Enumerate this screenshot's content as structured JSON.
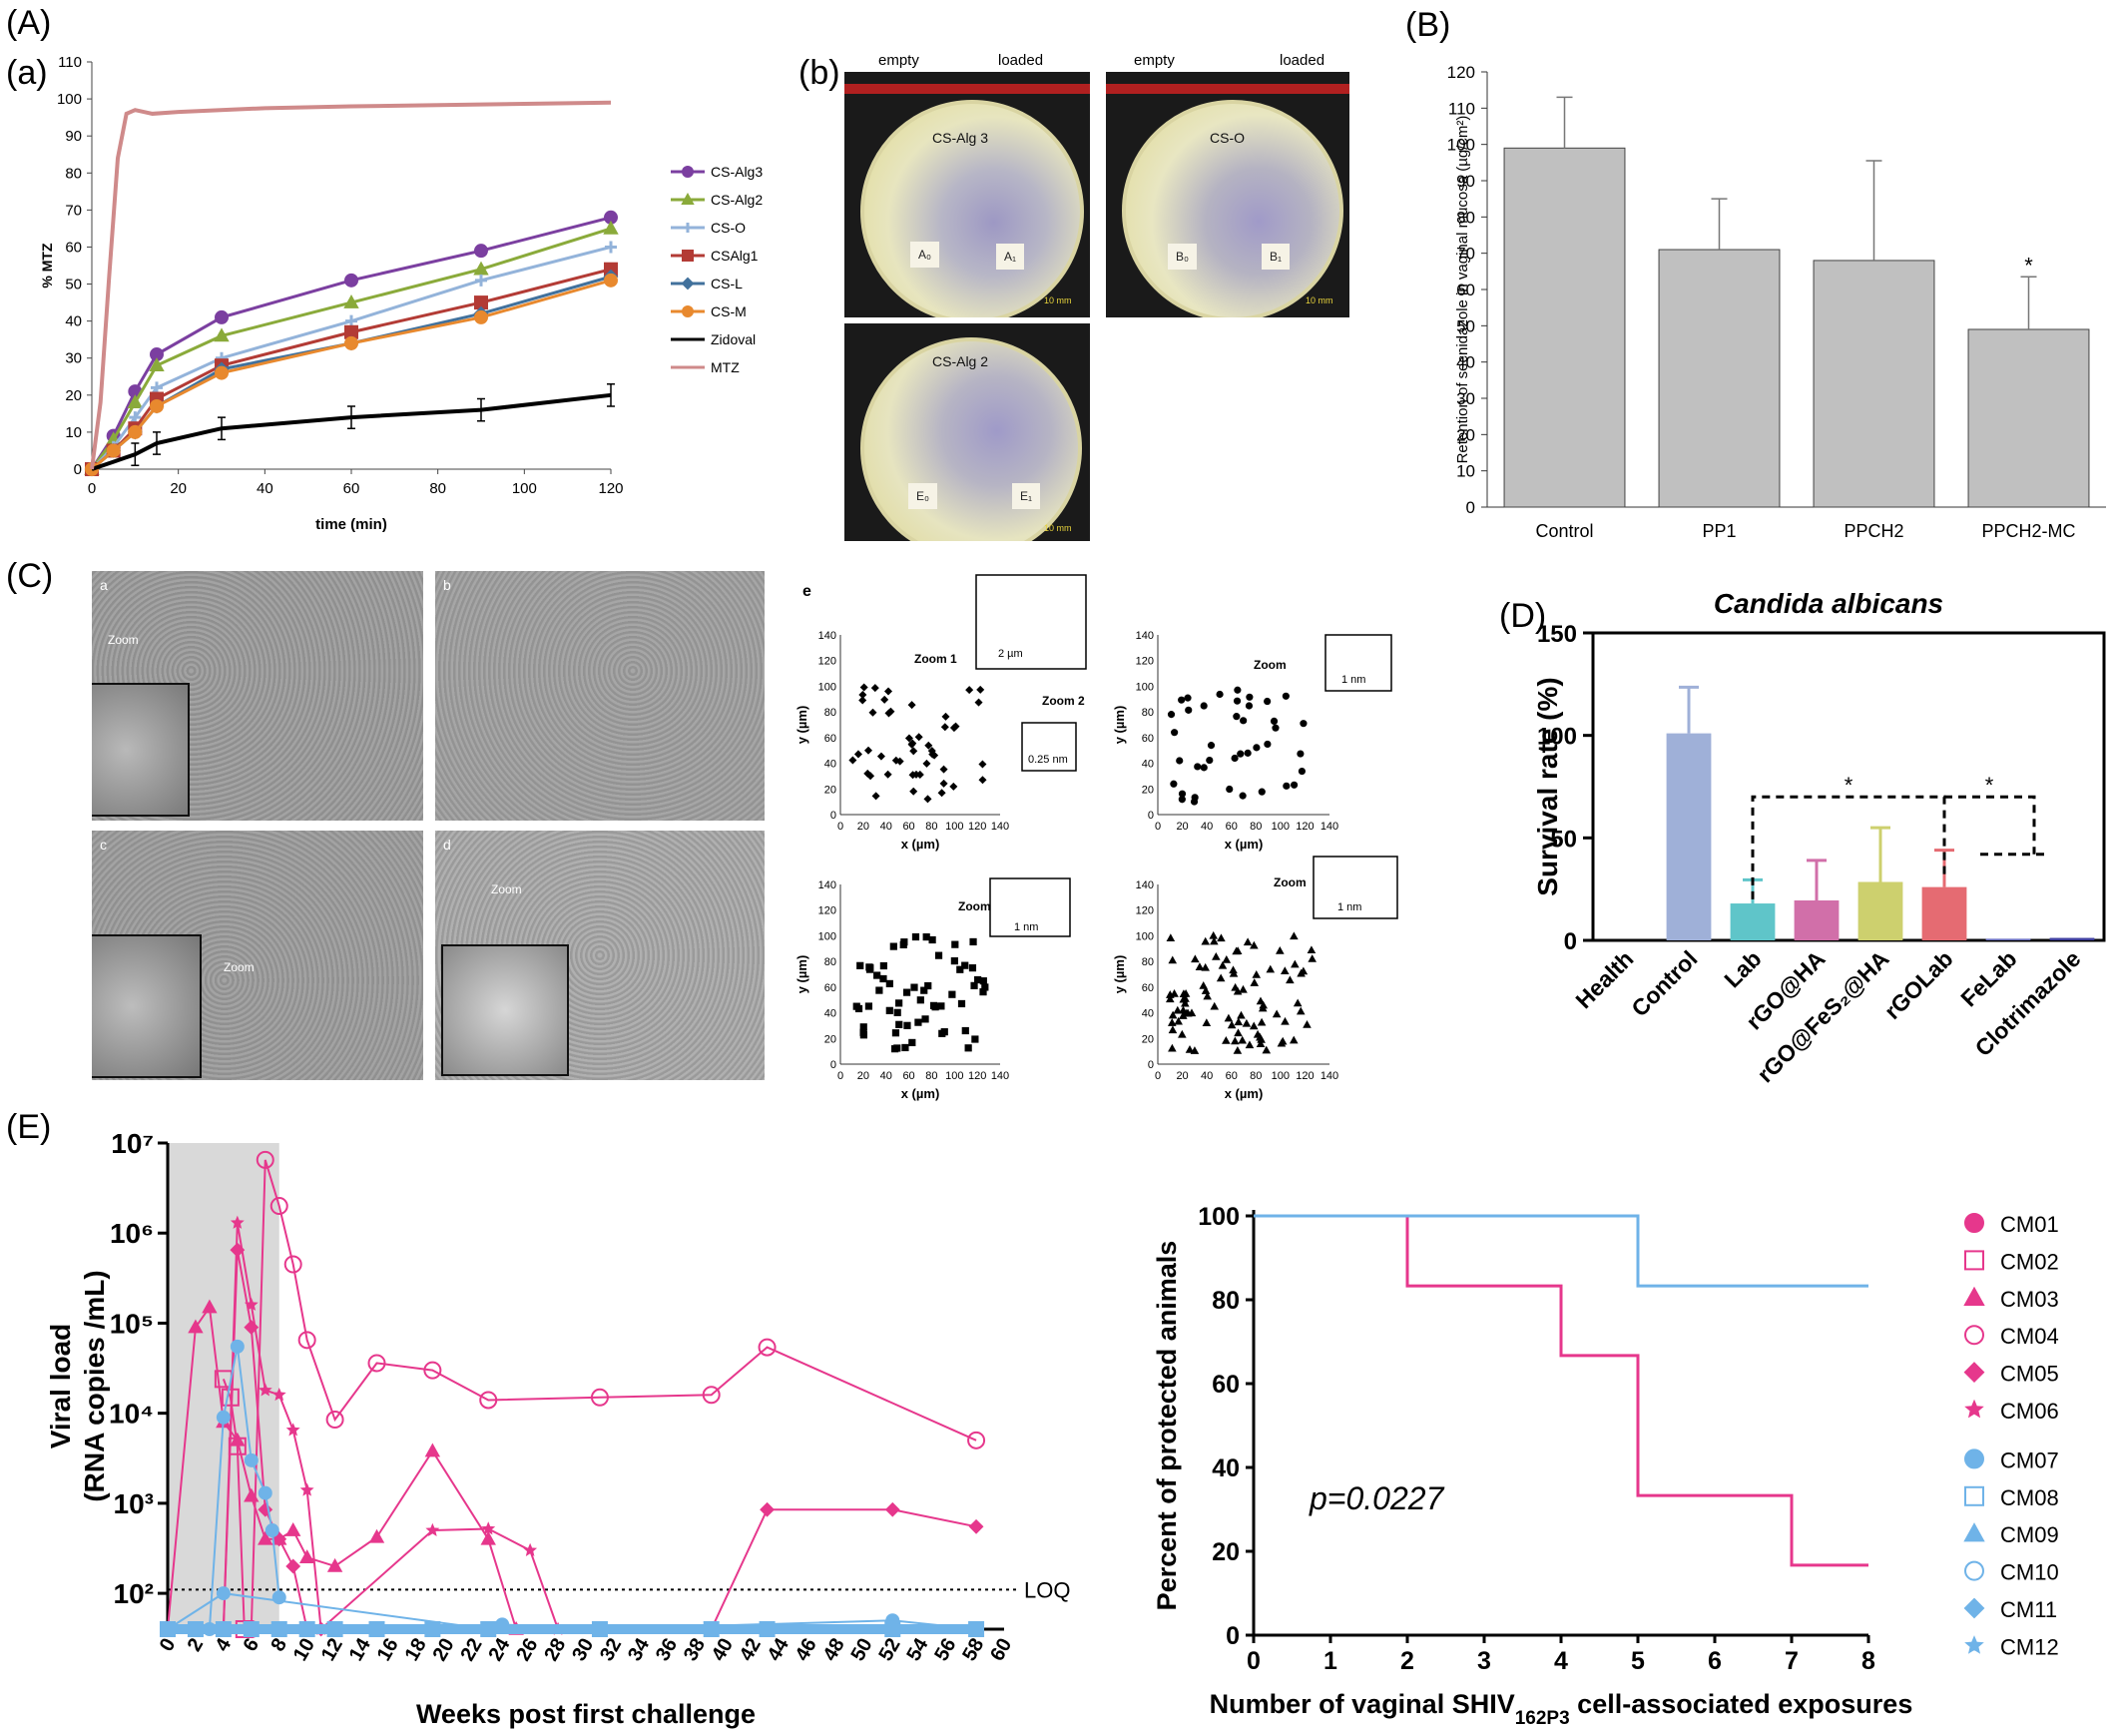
{
  "panels": {
    "A": "(A)",
    "a": "(a)",
    "b": "(b)",
    "B": "(B)",
    "C": "(C)",
    "D": "(D)",
    "E": "(E)"
  },
  "colors": {
    "purple": "#7b3fa0",
    "green": "#8aaa3a",
    "lightblue": "#93b3da",
    "darkred": "#b33b35",
    "steel": "#41719c",
    "orange": "#e8892e",
    "black": "#000000",
    "pink": "#cf8a8a",
    "magenta": "#e6378c",
    "sky": "#6fb3e8",
    "bargray": "#c0c0c0"
  },
  "chart_data": [
    {
      "id": "A_release",
      "type": "line",
      "xlabel": "time (min)",
      "ylabel": "% MTZ",
      "xlim": [
        0,
        120
      ],
      "ylim": [
        0,
        110
      ],
      "xticks": [
        0,
        20,
        40,
        60,
        80,
        100,
        120
      ],
      "yticks": [
        0,
        10,
        20,
        30,
        40,
        50,
        60,
        70,
        80,
        90,
        100,
        110
      ],
      "series": [
        {
          "name": "CS-Alg3",
          "color": "#7b3fa0",
          "marker": "circle",
          "x": [
            0,
            5,
            10,
            15,
            30,
            60,
            90,
            120
          ],
          "y": [
            0,
            9,
            21,
            31,
            41,
            51,
            59,
            68
          ]
        },
        {
          "name": "CS-Alg2",
          "color": "#8aaa3a",
          "marker": "triangle",
          "x": [
            0,
            5,
            10,
            15,
            30,
            60,
            90,
            120
          ],
          "y": [
            0,
            8,
            18,
            28,
            36,
            45,
            54,
            65
          ]
        },
        {
          "name": "CS-O",
          "color": "#93b3da",
          "marker": "plus",
          "x": [
            0,
            5,
            10,
            15,
            30,
            60,
            90,
            120
          ],
          "y": [
            0,
            6,
            14,
            22,
            30,
            40,
            51,
            60
          ]
        },
        {
          "name": "CSAlg1",
          "color": "#b33b35",
          "marker": "square",
          "x": [
            0,
            5,
            10,
            15,
            30,
            60,
            90,
            120
          ],
          "y": [
            0,
            5,
            11,
            19,
            28,
            37,
            45,
            54
          ]
        },
        {
          "name": "CS-L",
          "color": "#41719c",
          "marker": "diamond",
          "x": [
            0,
            5,
            10,
            15,
            30,
            60,
            90,
            120
          ],
          "y": [
            0,
            5,
            10,
            17,
            27,
            34,
            42,
            52
          ]
        },
        {
          "name": "CS-M",
          "color": "#e8892e",
          "marker": "circle",
          "x": [
            0,
            5,
            10,
            15,
            30,
            60,
            90,
            120
          ],
          "y": [
            0,
            5,
            10,
            17,
            26,
            34,
            41,
            51
          ]
        },
        {
          "name": "Zidoval",
          "color": "#000000",
          "marker": "none",
          "x": [
            0,
            5,
            10,
            15,
            30,
            60,
            90,
            120
          ],
          "y": [
            0,
            2,
            4,
            7,
            11,
            14,
            16,
            20
          ]
        },
        {
          "name": "MTZ",
          "color": "#cf8a8a",
          "marker": "none",
          "x": [
            0,
            2,
            4,
            6,
            8,
            10,
            12,
            14,
            20,
            40,
            60,
            90,
            120
          ],
          "y": [
            0,
            18,
            52,
            84,
            96,
            97,
            96.5,
            96,
            96.5,
            97.5,
            98,
            98.5,
            99
          ]
        }
      ]
    },
    {
      "id": "B_retention",
      "type": "bar",
      "ylabel": "Retention of secnidazole in vaginal mucosa (µg/cm²)",
      "categories": [
        "Control",
        "PP1",
        "PPCH2",
        "PPCH2-MC"
      ],
      "values": [
        99,
        71,
        68,
        49
      ],
      "errors": [
        14,
        14,
        27.5,
        14.5
      ],
      "ylim": [
        0,
        120
      ],
      "yticks": [
        0,
        10,
        20,
        30,
        40,
        50,
        60,
        70,
        80,
        90,
        100,
        110,
        120
      ],
      "annotations": [
        "",
        "",
        "",
        "*"
      ]
    },
    {
      "id": "D_survival",
      "type": "bar",
      "title": "Candida albicans",
      "ylabel": "Survival rate (%)",
      "categories": [
        "Health",
        "Control",
        "Lab",
        "rGO@HA",
        "rGO@FeS₂@HA",
        "rGOLab",
        "FeLab",
        "Clotrimazole"
      ],
      "values": [
        0,
        101,
        18,
        19.5,
        28.5,
        26,
        0.8,
        1.2
      ],
      "errors": [
        0,
        22.5,
        11.5,
        19.5,
        26.5,
        18,
        0,
        0
      ],
      "colors": [
        "#ffffff",
        "#9fb0d8",
        "#5fc5c9",
        "#d16fa9",
        "#cdd06e",
        "#e56b72",
        "#6a6fc0",
        "#3f3f9f"
      ],
      "ylim": [
        0,
        150
      ],
      "yticks": [
        0,
        50,
        100,
        150
      ],
      "annotations": [
        "*",
        "*"
      ]
    },
    {
      "id": "E_viral",
      "type": "line",
      "xlabel": "Weeks post first challenge",
      "ylabel": "Viral load (RNA copies /mL)",
      "xlim": [
        0,
        60
      ],
      "ylog": true,
      "ylim": [
        40,
        10000000
      ],
      "xticks": [
        0,
        2,
        4,
        6,
        8,
        10,
        12,
        14,
        16,
        18,
        20,
        22,
        24,
        26,
        28,
        30,
        32,
        34,
        36,
        38,
        40,
        42,
        44,
        46,
        48,
        50,
        52,
        54,
        56,
        58,
        60
      ],
      "yticks": [
        "10²",
        "10³",
        "10⁴",
        "10⁵",
        "10⁶",
        "10⁷"
      ],
      "reference_line": {
        "label": "LOQ",
        "y": 110
      },
      "series": [
        {
          "name": "CM03",
          "color": "#e6378c",
          "x": [
            0,
            2,
            3,
            4,
            5,
            6,
            7,
            8,
            9,
            10,
            12,
            15,
            19,
            23,
            25
          ],
          "y": [
            40,
            90000,
            150000,
            8000,
            5000,
            1200,
            400,
            400,
            500,
            250,
            200,
            420,
            3800,
            400,
            40
          ]
        },
        {
          "name": "CM04",
          "color": "#e6378c",
          "x": [
            6,
            7,
            8,
            9,
            10,
            12,
            15,
            19,
            23,
            31,
            39,
            43,
            58
          ],
          "y": [
            40,
            6500000,
            2000000,
            450000,
            65000,
            8500,
            36000,
            30000,
            14000,
            15000,
            16000,
            54000,
            5000
          ]
        },
        {
          "name": "CM05",
          "color": "#e6378c",
          "x": [
            4,
            5,
            6,
            7,
            8,
            9,
            10,
            11,
            39,
            43,
            52,
            58
          ],
          "y": [
            40,
            650000,
            90000,
            850,
            400,
            200,
            40,
            40,
            40,
            850,
            850,
            550
          ]
        },
        {
          "name": "CM06",
          "color": "#e6378c",
          "x": [
            4,
            5,
            6,
            7,
            8,
            9,
            10,
            11,
            19,
            23,
            26,
            28
          ],
          "y": [
            40,
            1300000,
            160000,
            18000,
            16000,
            6500,
            1400,
            40,
            500,
            520,
            300,
            40
          ]
        },
        {
          "name": "CM02",
          "color": "#e6378c",
          "x": [
            4,
            4.5,
            5,
            5.5
          ],
          "y": [
            24000,
            15000,
            4300,
            40
          ]
        },
        {
          "name": "CM09",
          "color": "#6fb3e8",
          "x": [
            3,
            4,
            5,
            6,
            7,
            7.5,
            8
          ],
          "y": [
            40,
            9000,
            55000,
            3000,
            1300,
            500,
            90
          ]
        },
        {
          "name": "CM07",
          "color": "#6fb3e8",
          "x": [
            0,
            4,
            23,
            24,
            31,
            52,
            58
          ],
          "y": [
            40,
            100,
            40,
            45,
            40,
            50,
            40
          ]
        }
      ]
    },
    {
      "id": "E_protection",
      "type": "line",
      "xlabel": "Number of vaginal SHIV162P3 cell-associated exposures",
      "ylabel": "Percent of protected animals",
      "xlim": [
        0,
        8
      ],
      "ylim": [
        0,
        100
      ],
      "xticks": [
        0,
        1,
        2,
        3,
        4,
        5,
        6,
        7,
        8
      ],
      "yticks": [
        0,
        20,
        40,
        60,
        80,
        100
      ],
      "annotation": "p=0.0227",
      "series": [
        {
          "name": "magenta group",
          "color": "#e6378c",
          "x": [
            0,
            2,
            2,
            4,
            4,
            5,
            5,
            7,
            7,
            8
          ],
          "y": [
            100,
            100,
            83.3,
            83.3,
            66.7,
            66.7,
            33.3,
            33.3,
            16.7,
            16.7
          ]
        },
        {
          "name": "blue group",
          "color": "#6fb3e8",
          "x": [
            0,
            5,
            5,
            8
          ],
          "y": [
            100,
            100,
            83.3,
            83.3
          ]
        }
      ]
    },
    {
      "id": "C_scatter",
      "type": "scatter",
      "xlabel": "x (µm)",
      "ylabel": "y (µm)",
      "xlim": [
        0,
        140
      ],
      "ylim": [
        0,
        140
      ],
      "ticks": [
        0,
        20,
        40,
        60,
        80,
        100,
        120,
        140
      ]
    }
  ],
  "legendE": [
    "CM01",
    "CM02",
    "CM03",
    "CM04",
    "CM05",
    "CM06",
    "CM07",
    "CM08",
    "CM09",
    "CM10",
    "CM11",
    "CM12"
  ],
  "B_photo": {
    "empty": "empty",
    "loaded": "loaded",
    "dish1": "CS-Alg 3",
    "dish2": "CS-O",
    "dish3": "CS-Alg 2",
    "scale": "10 mm",
    "tag1a": "A₀",
    "tag1b": "A₁",
    "tag2a": "B₀",
    "tag2b": "B₁",
    "tag3a": "E₀",
    "tag3b": "E₁"
  },
  "C_micro": {
    "a": "a",
    "b": "b",
    "c": "c",
    "d": "d",
    "e": "e",
    "zoom": "Zoom",
    "zoom1": "Zoom 1",
    "zoom2": "Zoom 2",
    "s2um": "2 µm",
    "s025": "0.25 nm",
    "s1nm": "1 nm"
  }
}
